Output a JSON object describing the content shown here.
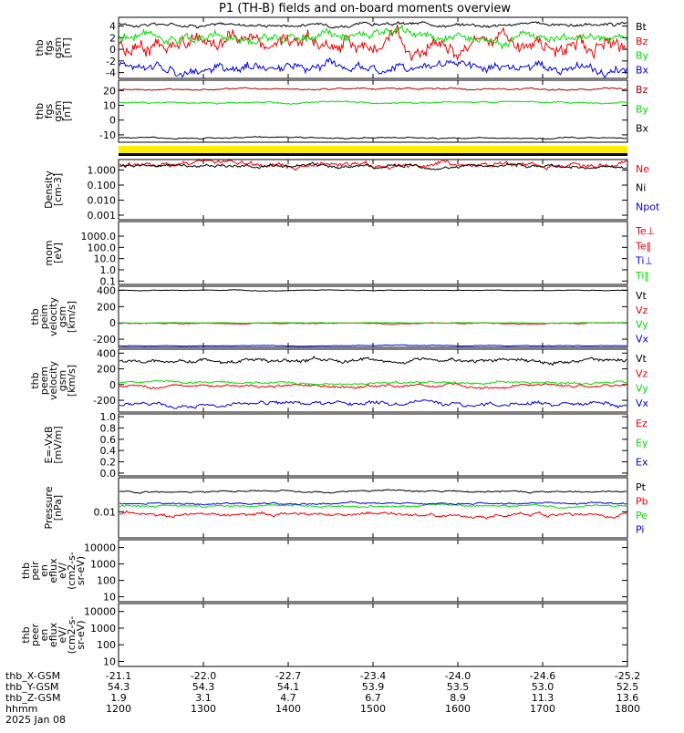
{
  "title": "P1 (TH-B) fields and on-board moments overview",
  "colors": {
    "black": "#000000",
    "red": "#ee0000",
    "green": "#00dd00",
    "blue": "#0000dd",
    "dark_red": "#aa0000",
    "yellow": "#ffee00"
  },
  "x_axis": {
    "ephemeris_rows": [
      {
        "label": "thb_X-GSM",
        "values": [
          "-21.1",
          "-22.0",
          "-22.7",
          "-23.4",
          "-24.0",
          "-24.6",
          "-25.2"
        ]
      },
      {
        "label": "thb_Y-GSM",
        "values": [
          "54.3",
          "54.3",
          "54.1",
          "53.9",
          "53.5",
          "53.0",
          "52.5"
        ]
      },
      {
        "label": "thb_Z-GSM",
        "values": [
          "1.9",
          "3.1",
          "4.7",
          "6.7",
          "8.9",
          "11.3",
          "13.6"
        ]
      },
      {
        "label": "hhmm",
        "values": [
          "1200",
          "1300",
          "1400",
          "1500",
          "1600",
          "1700",
          "1800"
        ]
      }
    ],
    "date": "2025 Jan 08"
  },
  "chart_data": [
    {
      "type": "line",
      "ylabel_lines": [
        "thb",
        "fgs",
        "gsm",
        "[nT]"
      ],
      "yticks": [
        "4",
        "2",
        "0",
        "-2",
        "-4"
      ],
      "ylim": [
        -5,
        5.5
      ],
      "legend": [
        "Bt",
        "Bz",
        "By",
        "Bx"
      ],
      "series": [
        {
          "name": "Bt",
          "color": "black",
          "level": 4.3,
          "noise": 0.3
        },
        {
          "name": "Bz",
          "color": "red",
          "level": 1.0,
          "noise": 1.4
        },
        {
          "name": "By",
          "color": "green",
          "level": 2.2,
          "noise": 0.8
        },
        {
          "name": "Bx",
          "color": "blue",
          "level": -3.0,
          "noise": 0.8
        }
      ]
    },
    {
      "type": "line",
      "ylabel_lines": [
        "thb",
        "fgs",
        "gsm",
        "[nT]"
      ],
      "yticks": [
        "20",
        "10",
        "0",
        "-10"
      ],
      "ylim": [
        -15,
        27
      ],
      "legend": [
        "Bz",
        "By",
        "Bx"
      ],
      "series": [
        {
          "name": "Bz",
          "color": "dark_red",
          "level": 21,
          "noise": 0.6
        },
        {
          "name": "By",
          "color": "green",
          "level": 12,
          "noise": 0.5
        },
        {
          "name": "Bx",
          "color": "black",
          "level": -12,
          "noise": 0.4
        }
      ]
    },
    {
      "type": "line",
      "ylabel_lines": [
        "Density",
        "[cm-3]"
      ],
      "yticks": [
        "1.000",
        "0.100",
        "0.010",
        "0.001"
      ],
      "ylim": [
        0.0005,
        5
      ],
      "log": true,
      "legend": [
        "Ne",
        "Ni",
        "Npot"
      ],
      "series": [
        {
          "name": "Ne",
          "color": "red",
          "level": 2.4,
          "noise": 0.3
        },
        {
          "name": "Ni",
          "color": "black",
          "level": 1.7,
          "noise": 0.2
        }
      ]
    },
    {
      "type": "line",
      "ylabel_lines": [
        "mom",
        "[eV]"
      ],
      "yticks": [
        "1000.0",
        "100.0",
        "10.0",
        "1.0",
        "0.1"
      ],
      "ylim": [
        0.05,
        20000
      ],
      "log": true,
      "legend": [
        "Te⊥",
        "Te‖",
        "Ti⊥",
        "Ti‖"
      ],
      "series": []
    },
    {
      "type": "line",
      "ylabel_lines": [
        "thb",
        "peim",
        "velocity",
        "gsm",
        "[km/s]"
      ],
      "yticks": [
        "400",
        "200",
        "0",
        "-200"
      ],
      "ylim": [
        -300,
        450
      ],
      "legend": [
        "Vt",
        "Vz",
        "Vy",
        "Vx"
      ],
      "series": [
        {
          "name": "Vt",
          "color": "black",
          "level": 400,
          "noise": 4
        },
        {
          "name": "Vz",
          "color": "red",
          "level": -5,
          "noise": 6
        },
        {
          "name": "Vy",
          "color": "green",
          "level": 0,
          "noise": 3
        },
        {
          "name": "Vx",
          "color": "blue",
          "level": -280,
          "noise": 4
        }
      ]
    },
    {
      "type": "line",
      "ylabel_lines": [
        "thb",
        "peem",
        "velocity",
        "gsm",
        "[km/s]"
      ],
      "yticks": [
        "400",
        "200",
        "0",
        "-200"
      ],
      "ylim": [
        -350,
        450
      ],
      "legend": [
        "Vt",
        "Vz",
        "Vy",
        "Vx"
      ],
      "series": [
        {
          "name": "Vt",
          "color": "black",
          "level": 310,
          "noise": 25
        },
        {
          "name": "Vz",
          "color": "red",
          "level": -20,
          "noise": 18
        },
        {
          "name": "Vy",
          "color": "green",
          "level": 20,
          "noise": 15
        },
        {
          "name": "Vx",
          "color": "blue",
          "level": -260,
          "noise": 25
        }
      ]
    },
    {
      "type": "line",
      "ylabel_lines": [
        "E=-VxB",
        "[mV/m]"
      ],
      "yticks": [
        "1.0",
        "0.8",
        "0.6",
        "0.4",
        "0.2",
        "0.0"
      ],
      "ylim": [
        -0.05,
        1.05
      ],
      "legend": [
        "Ez",
        "Ey",
        "Ex"
      ],
      "series": []
    },
    {
      "type": "line",
      "ylabel_lines": [
        "Pressure",
        "[nPa]"
      ],
      "yticks": [
        "0.01"
      ],
      "ylim": [
        0.001,
        0.2
      ],
      "log": true,
      "legend": [
        "Pt",
        "Pb",
        "Pe",
        "Pi"
      ],
      "series": [
        {
          "name": "Pt",
          "color": "black",
          "level": 0.06,
          "noise": 0.06
        },
        {
          "name": "Pb",
          "color": "red",
          "level": 0.008,
          "noise": 0.12
        },
        {
          "name": "Pe",
          "color": "green",
          "level": 0.017,
          "noise": 0.07
        },
        {
          "name": "Pi",
          "color": "blue",
          "level": 0.021,
          "noise": 0.06
        }
      ]
    },
    {
      "type": "line",
      "ylabel_lines": [
        "thb",
        "peir",
        "en",
        "eflux",
        "eV/",
        "(cm2-s-",
        "sr-eV)"
      ],
      "yticks": [
        "10000",
        "1000",
        "100",
        "10"
      ],
      "ylim": [
        5,
        30000
      ],
      "log": true,
      "legend": [],
      "series": []
    },
    {
      "type": "line",
      "ylabel_lines": [
        "thb",
        "peer",
        "en",
        "eflux",
        "eV/",
        "(cm2-s-",
        "sr-eV)"
      ],
      "yticks": [
        "10000",
        "1000",
        "100",
        "10"
      ],
      "ylim": [
        5,
        30000
      ],
      "log": true,
      "legend": [],
      "series": []
    }
  ]
}
